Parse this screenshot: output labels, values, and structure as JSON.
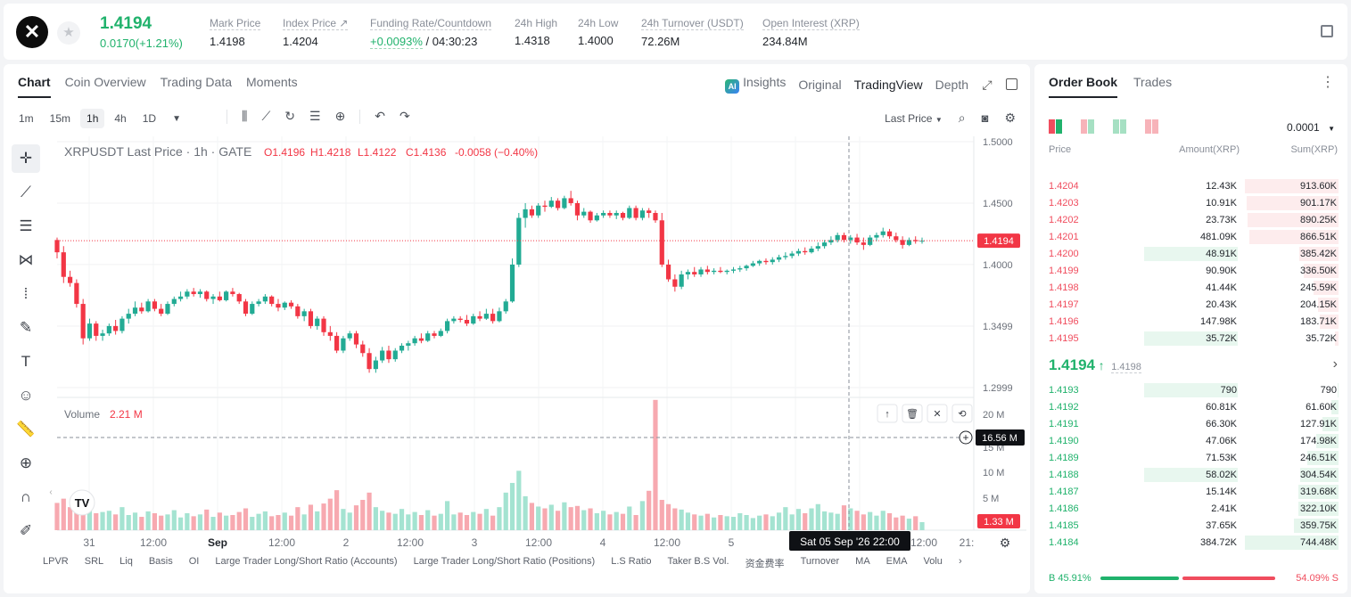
{
  "header": {
    "logo": "✕",
    "last_price": "1.4194",
    "change": "0.0170(+1.21%)",
    "stats": [
      {
        "label": "Mark Price",
        "value": "1.4198"
      },
      {
        "label": "Index Price ↗",
        "value": "1.4204"
      },
      {
        "label": "Funding Rate/Countdown",
        "value_green": "+0.0093%",
        "value": " / 04:30:23"
      },
      {
        "label": "24h High",
        "value": "1.4318"
      },
      {
        "label": "24h Low",
        "value": "1.4000"
      },
      {
        "label": "24h Turnover (USDT)",
        "value": "72.26M"
      },
      {
        "label": "Open Interest (XRP)",
        "value": "234.84M"
      }
    ]
  },
  "chart_panel": {
    "tabs": [
      "Chart",
      "Coin Overview",
      "Trading Data",
      "Moments"
    ],
    "views": {
      "insights": "Insights",
      "ai_badge": "AI",
      "original": "Original",
      "tradingview": "TradingView",
      "depth": "Depth"
    },
    "timeframes": [
      "1m",
      "15m",
      "1h",
      "4h",
      "1D"
    ],
    "price_type": "Last Price",
    "legend": {
      "title": "XRPUSDT Last Price · 1h · GATE",
      "o": "O1.4196",
      "h": "H1.4218",
      "l": "L1.4122",
      "c": "C1.4136",
      "chg": "-0.0058 (−0.40%)"
    },
    "volume_legend": {
      "label": "Volume",
      "value": "2.21 M"
    },
    "price_axis": [
      "1.5000",
      "1.4500",
      "1.4000",
      "1.3499",
      "1.2999"
    ],
    "volume_axis": [
      "20 M",
      "15 M",
      "10 M",
      "5 M"
    ],
    "last_price_tag": "1.4194",
    "volume_crosshair_tag": "16.56 M",
    "last_volume_tag": "1.33 M",
    "time_axis": [
      "31",
      "12:00",
      "Sep",
      "12:00",
      "2",
      "12:00",
      "3",
      "12:00",
      "4",
      "12:00",
      "5",
      "12:00",
      "21:"
    ],
    "crosshair_time": "Sat 05 Sep '26   22:00",
    "indicators": [
      "LPVR",
      "SRL",
      "Liq",
      "Basis",
      "OI",
      "Large Trader Long/Short Ratio (Accounts)",
      "Large Trader Long/Short Ratio (Positions)",
      "L.S Ratio",
      "Taker B.S Vol.",
      "资金费率",
      "Turnover",
      "MA",
      "EMA",
      "Volu",
      "›"
    ],
    "colors": {
      "up": "#22ab94",
      "down": "#f23645",
      "up_vol": "#a4e3d1",
      "down_vol": "#f7a9b0"
    }
  },
  "chart_data": {
    "type": "candlestick",
    "symbol": "XRPUSDT",
    "interval": "1h",
    "ylim": [
      1.2999,
      1.5
    ],
    "candles": [
      [
        1.42,
        1.422,
        1.405,
        1.41
      ],
      [
        1.41,
        1.415,
        1.385,
        1.39
      ],
      [
        1.39,
        1.395,
        1.382,
        1.385
      ],
      [
        1.385,
        1.388,
        1.365,
        1.368
      ],
      [
        1.368,
        1.372,
        1.335,
        1.34
      ],
      [
        1.34,
        1.356,
        1.338,
        1.352
      ],
      [
        1.352,
        1.354,
        1.338,
        1.342
      ],
      [
        1.342,
        1.347,
        1.338,
        1.344
      ],
      [
        1.344,
        1.352,
        1.342,
        1.35
      ],
      [
        1.35,
        1.355,
        1.343,
        1.346
      ],
      [
        1.346,
        1.358,
        1.344,
        1.356
      ],
      [
        1.356,
        1.364,
        1.352,
        1.36
      ],
      [
        1.36,
        1.37,
        1.358,
        1.365
      ],
      [
        1.365,
        1.369,
        1.36,
        1.362
      ],
      [
        1.362,
        1.372,
        1.361,
        1.37
      ],
      [
        1.37,
        1.372,
        1.362,
        1.364
      ],
      [
        1.364,
        1.368,
        1.358,
        1.36
      ],
      [
        1.36,
        1.37,
        1.359,
        1.368
      ],
      [
        1.368,
        1.374,
        1.366,
        1.372
      ],
      [
        1.372,
        1.378,
        1.37,
        1.374
      ],
      [
        1.374,
        1.38,
        1.372,
        1.378
      ],
      [
        1.378,
        1.381,
        1.374,
        1.376
      ],
      [
        1.376,
        1.38,
        1.373,
        1.378
      ],
      [
        1.378,
        1.379,
        1.37,
        1.372
      ],
      [
        1.372,
        1.376,
        1.368,
        1.374
      ],
      [
        1.374,
        1.378,
        1.37,
        1.371
      ],
      [
        1.371,
        1.379,
        1.37,
        1.378
      ],
      [
        1.378,
        1.381,
        1.374,
        1.376
      ],
      [
        1.376,
        1.377,
        1.368,
        1.37
      ],
      [
        1.37,
        1.372,
        1.358,
        1.36
      ],
      [
        1.36,
        1.37,
        1.359,
        1.368
      ],
      [
        1.368,
        1.372,
        1.366,
        1.37
      ],
      [
        1.37,
        1.376,
        1.368,
        1.374
      ],
      [
        1.374,
        1.375,
        1.366,
        1.368
      ],
      [
        1.368,
        1.372,
        1.362,
        1.365
      ],
      [
        1.365,
        1.37,
        1.363,
        1.369
      ],
      [
        1.369,
        1.371,
        1.364,
        1.366
      ],
      [
        1.366,
        1.368,
        1.356,
        1.358
      ],
      [
        1.358,
        1.364,
        1.354,
        1.362
      ],
      [
        1.362,
        1.364,
        1.348,
        1.35
      ],
      [
        1.35,
        1.358,
        1.347,
        1.356
      ],
      [
        1.356,
        1.358,
        1.342,
        1.345
      ],
      [
        1.345,
        1.35,
        1.338,
        1.342
      ],
      [
        1.342,
        1.345,
        1.328,
        1.33
      ],
      [
        1.33,
        1.342,
        1.328,
        1.34
      ],
      [
        1.34,
        1.346,
        1.338,
        1.344
      ],
      [
        1.344,
        1.346,
        1.332,
        1.335
      ],
      [
        1.335,
        1.338,
        1.325,
        1.328
      ],
      [
        1.328,
        1.332,
        1.312,
        1.315
      ],
      [
        1.315,
        1.325,
        1.312,
        1.322
      ],
      [
        1.322,
        1.333,
        1.32,
        1.33
      ],
      [
        1.33,
        1.334,
        1.32,
        1.323
      ],
      [
        1.323,
        1.332,
        1.321,
        1.33
      ],
      [
        1.33,
        1.336,
        1.328,
        1.334
      ],
      [
        1.334,
        1.338,
        1.33,
        1.336
      ],
      [
        1.336,
        1.342,
        1.334,
        1.34
      ],
      [
        1.34,
        1.344,
        1.336,
        1.338
      ],
      [
        1.338,
        1.346,
        1.337,
        1.344
      ],
      [
        1.344,
        1.346,
        1.34,
        1.342
      ],
      [
        1.342,
        1.348,
        1.341,
        1.346
      ],
      [
        1.346,
        1.356,
        1.344,
        1.354
      ],
      [
        1.354,
        1.358,
        1.352,
        1.356
      ],
      [
        1.356,
        1.358,
        1.353,
        1.355
      ],
      [
        1.355,
        1.359,
        1.35,
        1.352
      ],
      [
        1.352,
        1.36,
        1.351,
        1.358
      ],
      [
        1.358,
        1.362,
        1.354,
        1.356
      ],
      [
        1.356,
        1.364,
        1.355,
        1.36
      ],
      [
        1.36,
        1.364,
        1.352,
        1.354
      ],
      [
        1.354,
        1.365,
        1.353,
        1.362
      ],
      [
        1.362,
        1.372,
        1.36,
        1.37
      ],
      [
        1.37,
        1.405,
        1.369,
        1.4
      ],
      [
        1.4,
        1.442,
        1.398,
        1.438
      ],
      [
        1.438,
        1.45,
        1.43,
        1.445
      ],
      [
        1.445,
        1.448,
        1.438,
        1.44
      ],
      [
        1.44,
        1.45,
        1.438,
        1.448
      ],
      [
        1.448,
        1.452,
        1.443,
        1.447
      ],
      [
        1.447,
        1.455,
        1.446,
        1.452
      ],
      [
        1.452,
        1.454,
        1.444,
        1.446
      ],
      [
        1.446,
        1.456,
        1.445,
        1.454
      ],
      [
        1.454,
        1.46,
        1.448,
        1.45
      ],
      [
        1.45,
        1.452,
        1.436,
        1.44
      ],
      [
        1.44,
        1.446,
        1.438,
        1.443
      ],
      [
        1.443,
        1.444,
        1.434,
        1.436
      ],
      [
        1.436,
        1.442,
        1.435,
        1.44
      ],
      [
        1.44,
        1.444,
        1.438,
        1.442
      ],
      [
        1.442,
        1.444,
        1.438,
        1.44
      ],
      [
        1.44,
        1.444,
        1.437,
        1.442
      ],
      [
        1.442,
        1.443,
        1.436,
        1.438
      ],
      [
        1.438,
        1.448,
        1.437,
        1.446
      ],
      [
        1.446,
        1.448,
        1.436,
        1.438
      ],
      [
        1.438,
        1.446,
        1.436,
        1.444
      ],
      [
        1.444,
        1.446,
        1.438,
        1.442
      ],
      [
        1.442,
        1.444,
        1.434,
        1.436
      ],
      [
        1.436,
        1.442,
        1.398,
        1.4
      ],
      [
        1.4,
        1.404,
        1.386,
        1.388
      ],
      [
        1.388,
        1.392,
        1.378,
        1.382
      ],
      [
        1.382,
        1.395,
        1.38,
        1.392
      ],
      [
        1.392,
        1.396,
        1.388,
        1.394
      ],
      [
        1.394,
        1.398,
        1.39,
        1.392
      ],
      [
        1.392,
        1.398,
        1.39,
        1.396
      ],
      [
        1.396,
        1.399,
        1.392,
        1.394
      ],
      [
        1.394,
        1.397,
        1.392,
        1.395
      ],
      [
        1.395,
        1.398,
        1.393,
        1.394
      ],
      [
        1.394,
        1.396,
        1.392,
        1.395
      ],
      [
        1.395,
        1.398,
        1.393,
        1.396
      ],
      [
        1.396,
        1.399,
        1.394,
        1.397
      ],
      [
        1.397,
        1.4,
        1.395,
        1.399
      ],
      [
        1.399,
        1.403,
        1.398,
        1.401
      ],
      [
        1.401,
        1.404,
        1.399,
        1.403
      ],
      [
        1.403,
        1.405,
        1.4,
        1.402
      ],
      [
        1.402,
        1.406,
        1.4,
        1.404
      ],
      [
        1.404,
        1.408,
        1.402,
        1.406
      ],
      [
        1.406,
        1.41,
        1.404,
        1.407
      ],
      [
        1.407,
        1.411,
        1.405,
        1.409
      ],
      [
        1.409,
        1.413,
        1.407,
        1.411
      ],
      [
        1.411,
        1.414,
        1.408,
        1.41
      ],
      [
        1.41,
        1.415,
        1.409,
        1.413
      ],
      [
        1.413,
        1.418,
        1.411,
        1.415
      ],
      [
        1.415,
        1.42,
        1.413,
        1.418
      ],
      [
        1.418,
        1.423,
        1.416,
        1.42
      ],
      [
        1.42,
        1.426,
        1.418,
        1.424
      ],
      [
        1.424,
        1.426,
        1.418,
        1.42
      ],
      [
        1.42,
        1.424,
        1.417,
        1.422
      ],
      [
        1.422,
        1.425,
        1.416,
        1.418
      ],
      [
        1.418,
        1.422,
        1.412,
        1.416
      ],
      [
        1.416,
        1.424,
        1.415,
        1.422
      ],
      [
        1.422,
        1.426,
        1.419,
        1.424
      ],
      [
        1.424,
        1.43,
        1.422,
        1.427
      ],
      [
        1.427,
        1.429,
        1.421,
        1.423
      ],
      [
        1.423,
        1.426,
        1.418,
        1.42
      ],
      [
        1.42,
        1.423,
        1.413,
        1.416
      ],
      [
        1.416,
        1.422,
        1.415,
        1.42
      ],
      [
        1.42,
        1.423,
        1.417,
        1.419
      ],
      [
        1.419,
        1.422,
        1.417,
        1.4194
      ]
    ],
    "volumes": [
      4.5,
      5.2,
      3.8,
      4.0,
      6.1,
      3.5,
      2.8,
      3.0,
      3.2,
      2.6,
      3.8,
      2.5,
      2.9,
      2.2,
      3.1,
      2.8,
      2.4,
      2.6,
      3.3,
      2.1,
      2.8,
      2.3,
      2.6,
      3.4,
      2.2,
      2.9,
      2.4,
      2.5,
      3.0,
      3.6,
      2.2,
      2.7,
      3.1,
      2.3,
      2.5,
      2.9,
      2.4,
      3.8,
      2.6,
      4.2,
      3.1,
      4.4,
      5.2,
      6.6,
      3.5,
      2.9,
      4.1,
      5.0,
      6.2,
      3.8,
      3.2,
      2.9,
      2.7,
      3.5,
      2.6,
      3.0,
      2.5,
      3.3,
      2.4,
      2.7,
      4.8,
      2.6,
      2.9,
      2.5,
      3.0,
      2.7,
      3.5,
      2.4,
      3.8,
      6.2,
      7.8,
      9.8,
      5.6,
      4.5,
      3.9,
      3.6,
      4.2,
      3.2,
      4.6,
      3.8,
      4.0,
      3.3,
      3.6,
      2.8,
      3.2,
      2.6,
      3.0,
      2.7,
      3.9,
      2.5,
      4.8,
      6.5,
      21.5,
      5.0,
      4.3,
      3.6,
      3.4,
      2.9,
      2.6,
      2.4,
      2.7,
      2.1,
      2.5,
      2.3,
      2.2,
      2.8,
      2.5,
      2.0,
      2.4,
      2.6,
      2.3,
      2.9,
      3.8,
      2.6,
      3.5,
      2.8,
      3.6,
      4.3,
      3.1,
      2.9,
      2.7,
      4.1,
      3.6,
      3.2,
      2.6,
      3.0,
      2.4,
      3.2,
      2.8,
      2.1,
      2.4,
      1.9,
      2.3,
      1.33
    ]
  },
  "order_book": {
    "tabs": [
      "Order Book",
      "Trades"
    ],
    "precision": "0.0001",
    "headers": [
      "Price",
      "Amount(XRP)",
      "Sum(XRP)"
    ],
    "asks": [
      {
        "price": "1.4204",
        "amount": "12.43K",
        "sum": "913.60K",
        "af": 0.0,
        "sf": 1.0
      },
      {
        "price": "1.4203",
        "amount": "10.91K",
        "sum": "901.17K",
        "af": 0.0,
        "sf": 0.98
      },
      {
        "price": "1.4202",
        "amount": "23.73K",
        "sum": "890.25K",
        "af": 0.0,
        "sf": 0.97
      },
      {
        "price": "1.4201",
        "amount": "481.09K",
        "sum": "866.51K",
        "af": 0.0,
        "sf": 0.95
      },
      {
        "price": "1.4200",
        "amount": "48.91K",
        "sum": "385.42K",
        "af": 0.97,
        "sf": 0.42
      },
      {
        "price": "1.4199",
        "amount": "90.90K",
        "sum": "336.50K",
        "af": 0.0,
        "sf": 0.37
      },
      {
        "price": "1.4198",
        "amount": "41.44K",
        "sum": "245.59K",
        "af": 0.0,
        "sf": 0.27
      },
      {
        "price": "1.4197",
        "amount": "20.43K",
        "sum": "204.15K",
        "af": 0.0,
        "sf": 0.22
      },
      {
        "price": "1.4196",
        "amount": "147.98K",
        "sum": "183.71K",
        "af": 0.0,
        "sf": 0.2
      },
      {
        "price": "1.4195",
        "amount": "35.72K",
        "sum": "35.72K",
        "af": 0.97,
        "sf": 0.04
      }
    ],
    "mid_price": "1.4194",
    "mid_arrow": "↑",
    "mark": "1.4198",
    "bids": [
      {
        "price": "1.4193",
        "amount": "790",
        "sum": "790",
        "af": 0.97,
        "sf": 0.01
      },
      {
        "price": "1.4192",
        "amount": "60.81K",
        "sum": "61.60K",
        "af": 0.0,
        "sf": 0.08
      },
      {
        "price": "1.4191",
        "amount": "66.30K",
        "sum": "127.91K",
        "af": 0.0,
        "sf": 0.17
      },
      {
        "price": "1.4190",
        "amount": "47.06K",
        "sum": "174.98K",
        "af": 0.0,
        "sf": 0.24
      },
      {
        "price": "1.4189",
        "amount": "71.53K",
        "sum": "246.51K",
        "af": 0.0,
        "sf": 0.33
      },
      {
        "price": "1.4188",
        "amount": "58.02K",
        "sum": "304.54K",
        "af": 0.97,
        "sf": 0.41
      },
      {
        "price": "1.4187",
        "amount": "15.14K",
        "sum": "319.68K",
        "af": 0.0,
        "sf": 0.43
      },
      {
        "price": "1.4186",
        "amount": "2.41K",
        "sum": "322.10K",
        "af": 0.0,
        "sf": 0.43
      },
      {
        "price": "1.4185",
        "amount": "37.65K",
        "sum": "359.75K",
        "af": 0.0,
        "sf": 0.48
      },
      {
        "price": "1.4184",
        "amount": "384.72K",
        "sum": "744.48K",
        "af": 0.0,
        "sf": 1.0
      }
    ],
    "buy_ratio": "B 45.91%",
    "sell_ratio": "54.09% S",
    "buy_fraction": 0.4591
  }
}
